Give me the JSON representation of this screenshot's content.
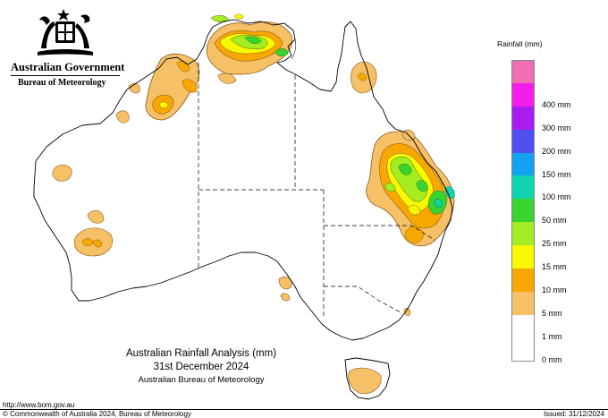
{
  "header": {
    "government": "Australian Government",
    "bureau": "Bureau of Meteorology"
  },
  "legend": {
    "title": "Rainfall (mm)",
    "items": [
      {
        "label": "",
        "color": "#f06eb4"
      },
      {
        "label": "400 mm",
        "color": "#f41eea"
      },
      {
        "label": "300 mm",
        "color": "#a81cf0"
      },
      {
        "label": "200 mm",
        "color": "#5050f0"
      },
      {
        "label": "150 mm",
        "color": "#12a2f0"
      },
      {
        "label": "100 mm",
        "color": "#10d4b0"
      },
      {
        "label": "50 mm",
        "color": "#38d430"
      },
      {
        "label": "25 mm",
        "color": "#a6ec22"
      },
      {
        "label": "15 mm",
        "color": "#f8f800"
      },
      {
        "label": "10 mm",
        "color": "#f6a800"
      },
      {
        "label": "5 mm",
        "color": "#f6c066"
      },
      {
        "label": "1 mm",
        "color": "#ffffff"
      },
      {
        "label": "0 mm",
        "color": "#ffffff"
      }
    ]
  },
  "titles": {
    "line1": "Australian Rainfall Analysis (mm)",
    "line2": "31st December 2024",
    "line3": "Australian Bureau of Meteorology"
  },
  "footer": {
    "url": "http://www.bom.gov.au",
    "copyright": "© Commonwealth of Australia 2024, Bureau of Meteorology",
    "issued": "Issued: 31/12/2024"
  }
}
